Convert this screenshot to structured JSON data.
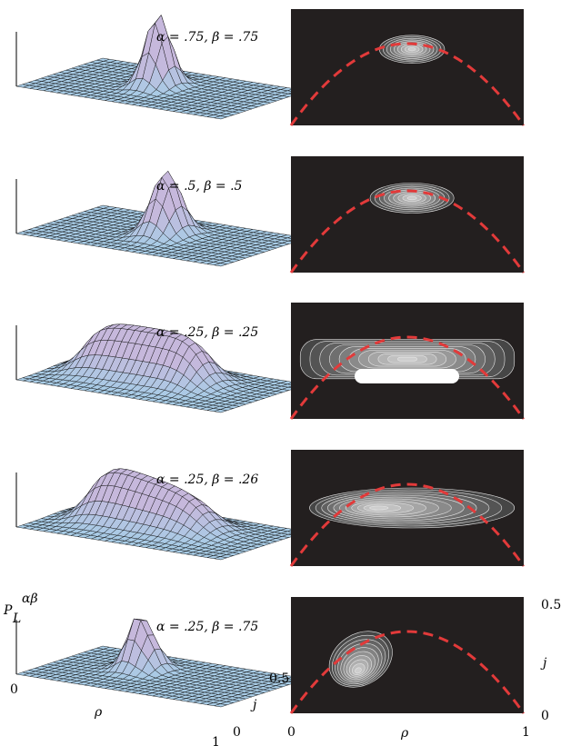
{
  "panels": [
    {
      "alpha": ".75",
      "beta": ".75",
      "caption": "α = .75,  β = .75"
    },
    {
      "alpha": ".5",
      "beta": ".5",
      "caption": "α = .5,  β = .5"
    },
    {
      "alpha": ".25",
      "beta": ".25",
      "caption": "α = .25,  β = .25"
    },
    {
      "alpha": ".25",
      "beta": ".26",
      "caption": "α = .25,  β = .26"
    },
    {
      "alpha": ".25",
      "beta": ".75",
      "caption": "α = .25,  β = .75"
    }
  ],
  "surface_axes": {
    "z_label_main": "P",
    "z_label_sub": "L",
    "z_label_sup": "αβ",
    "z_origin_tick": "0",
    "x_label": "ρ",
    "x_tick_end": "1",
    "y_label": "j",
    "y_tick_start": "0",
    "y_tick_end": "0.5"
  },
  "contour_axes": {
    "x_label": "ρ",
    "x_ticks": [
      "0",
      "1"
    ],
    "y_label": "j",
    "y_ticks": [
      "0",
      "0.5"
    ]
  },
  "colors": {
    "mesh_base": "#a8cce6",
    "mesh_peak": "#c6b8dc",
    "mesh_line": "#111111",
    "contour_bg": "#231f1f",
    "contour_line": "#e6e6e6",
    "curve": "#e23a3a"
  }
}
